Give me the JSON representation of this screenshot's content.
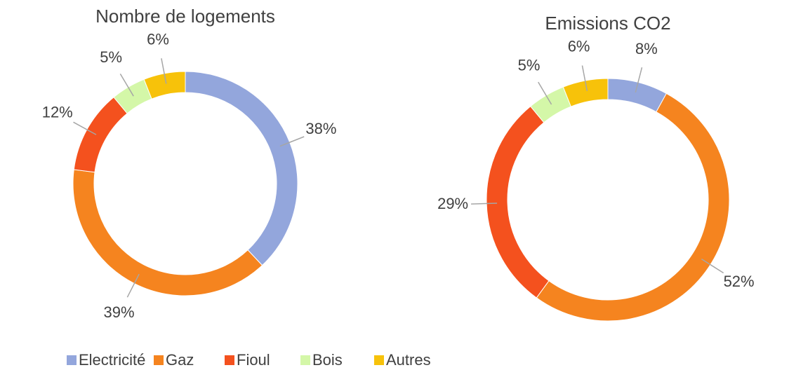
{
  "chart_data": [
    {
      "type": "pie",
      "title": "Nombre de logements",
      "categories": [
        "Electricité",
        "Gaz",
        "Fioul",
        "Bois",
        "Autres"
      ],
      "values": [
        38,
        39,
        12,
        5,
        6
      ],
      "value_labels": [
        "38%",
        "39%",
        "12%",
        "5%",
        "6%"
      ],
      "colors": [
        "#93a6dc",
        "#f5841f",
        "#f4511e",
        "#d4f7a8",
        "#f7c20a"
      ],
      "legend": "bottom"
    },
    {
      "type": "pie",
      "title": "Emissions CO2",
      "categories": [
        "Electricité",
        "Gaz",
        "Fioul",
        "Bois",
        "Autres"
      ],
      "values": [
        8,
        52,
        29,
        5,
        6
      ],
      "value_labels": [
        "8%",
        "52%",
        "29%",
        "5%",
        "6%"
      ],
      "colors": [
        "#93a6dc",
        "#f5841f",
        "#f4511e",
        "#d4f7a8",
        "#f7c20a"
      ]
    }
  ]
}
